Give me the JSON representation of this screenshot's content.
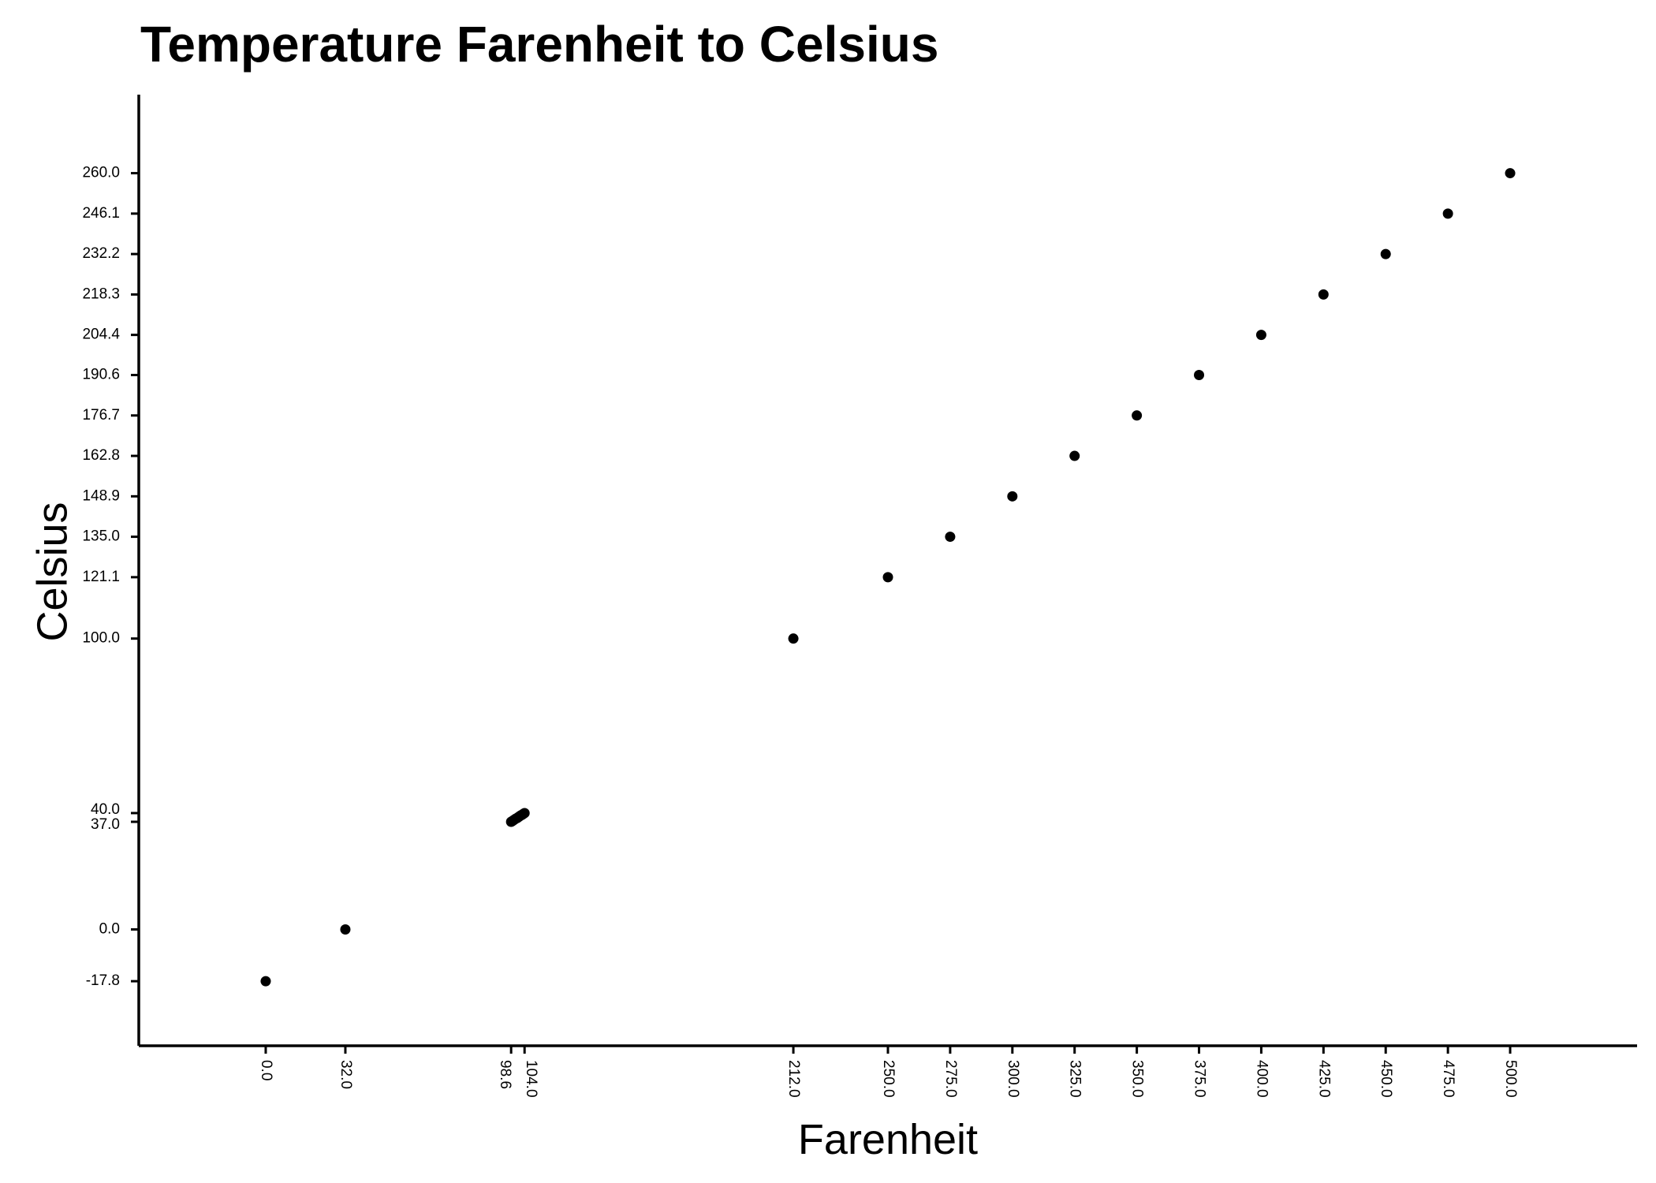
{
  "chart_data": {
    "type": "scatter",
    "title": "Temperature Farenheit to Celsius",
    "xlabel": "Farenheit",
    "ylabel": "Celsius",
    "xlim": [
      -51,
      551
    ],
    "ylim": [
      -40,
      287
    ],
    "grid": false,
    "legend": "none",
    "marker_color": "#000000",
    "x_ticks": [
      "0.0",
      "32.0",
      "98.6",
      "104.0",
      "212.0",
      "250.0",
      "275.0",
      "300.0",
      "325.0",
      "350.0",
      "375.0",
      "400.0",
      "425.0",
      "450.0",
      "475.0",
      "500.0"
    ],
    "y_ticks": [
      "-17.8",
      "0.0",
      "37.0",
      "40.0",
      "100.0",
      "121.1",
      "135.0",
      "148.9",
      "162.8",
      "176.7",
      "190.6",
      "204.4",
      "218.3",
      "232.2",
      "246.1",
      "260.0"
    ],
    "points": [
      {
        "x": 0.0,
        "y": -17.8
      },
      {
        "x": 32.0,
        "y": 0.0
      },
      {
        "x": 98.6,
        "y": 37.0
      },
      {
        "x": 99.0,
        "y": 37.2
      },
      {
        "x": 99.5,
        "y": 37.5
      },
      {
        "x": 100.0,
        "y": 37.8
      },
      {
        "x": 100.5,
        "y": 38.1
      },
      {
        "x": 101.0,
        "y": 38.3
      },
      {
        "x": 101.5,
        "y": 38.6
      },
      {
        "x": 102.0,
        "y": 38.9
      },
      {
        "x": 102.5,
        "y": 39.2
      },
      {
        "x": 103.0,
        "y": 39.4
      },
      {
        "x": 103.5,
        "y": 39.7
      },
      {
        "x": 104.0,
        "y": 40.0
      },
      {
        "x": 212.0,
        "y": 100.0
      },
      {
        "x": 250.0,
        "y": 121.1
      },
      {
        "x": 275.0,
        "y": 135.0
      },
      {
        "x": 300.0,
        "y": 148.9
      },
      {
        "x": 325.0,
        "y": 162.8
      },
      {
        "x": 350.0,
        "y": 176.7
      },
      {
        "x": 375.0,
        "y": 190.6
      },
      {
        "x": 400.0,
        "y": 204.4
      },
      {
        "x": 425.0,
        "y": 218.3
      },
      {
        "x": 450.0,
        "y": 232.2
      },
      {
        "x": 475.0,
        "y": 246.1
      },
      {
        "x": 500.0,
        "y": 260.0
      }
    ]
  }
}
